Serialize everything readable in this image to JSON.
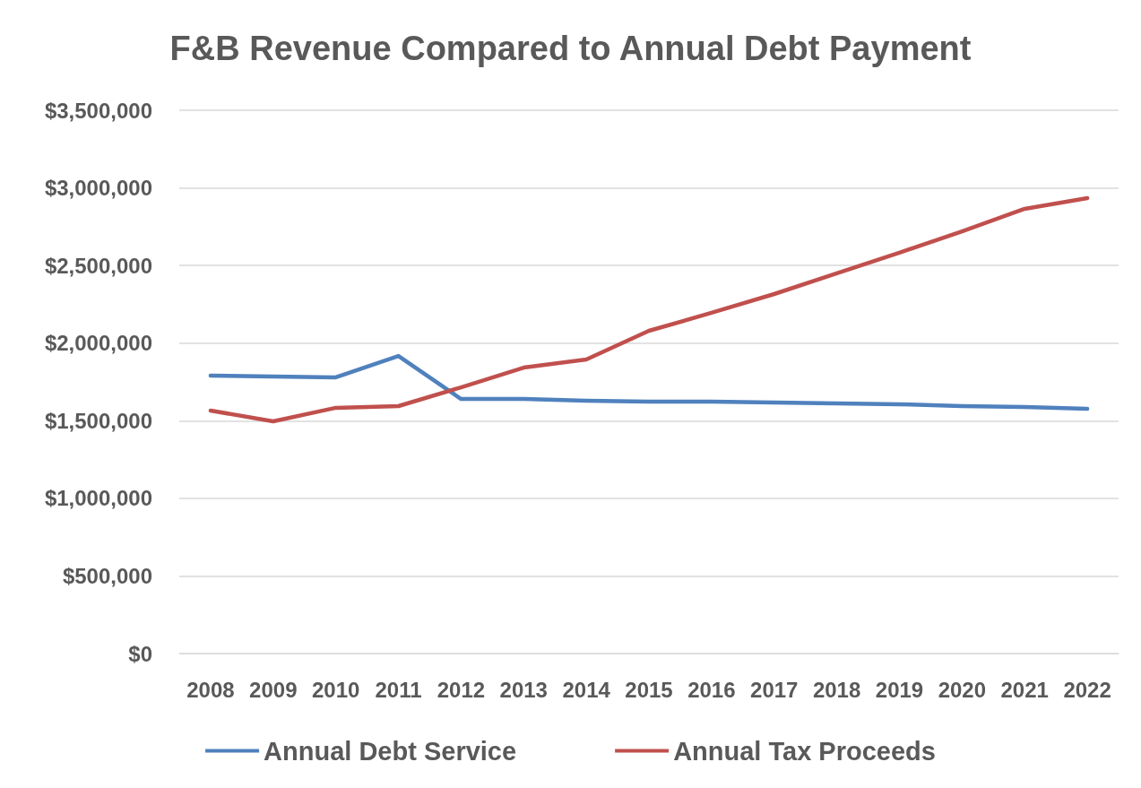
{
  "chart_data": {
    "type": "line",
    "title": "F&B Revenue Compared to Annual Debt Payment",
    "categories": [
      "2008",
      "2009",
      "2010",
      "2011",
      "2012",
      "2013",
      "2014",
      "2015",
      "2016",
      "2017",
      "2018",
      "2019",
      "2020",
      "2021",
      "2022"
    ],
    "series": [
      {
        "name": "Annual Debt Service",
        "color": "#4f81bd",
        "values": [
          1790000,
          1785000,
          1779000,
          1917000,
          1640000,
          1640000,
          1629000,
          1623000,
          1623000,
          1617000,
          1611000,
          1606000,
          1594000,
          1588000,
          1577000
        ]
      },
      {
        "name": "Annual Tax Proceeds",
        "color": "#c0504d",
        "values": [
          1565000,
          1496000,
          1583000,
          1594000,
          1715000,
          1842000,
          1894000,
          2079000,
          2195000,
          2316000,
          2449000,
          2582000,
          2720000,
          2865000,
          2934000
        ]
      }
    ],
    "ylim": [
      0,
      3500000
    ],
    "yticks": [
      {
        "value": 0,
        "label": "$0"
      },
      {
        "value": 500000,
        "label": "$500,000"
      },
      {
        "value": 1000000,
        "label": "$1,000,000"
      },
      {
        "value": 1500000,
        "label": "$1,500,000"
      },
      {
        "value": 2000000,
        "label": "$2,000,000"
      },
      {
        "value": 2500000,
        "label": "$2,500,000"
      },
      {
        "value": 3000000,
        "label": "$3,000,000"
      },
      {
        "value": 3500000,
        "label": "$3,500,000"
      }
    ],
    "grid": "y",
    "legend": "bottom",
    "marker": "none",
    "line_style": "solid"
  }
}
